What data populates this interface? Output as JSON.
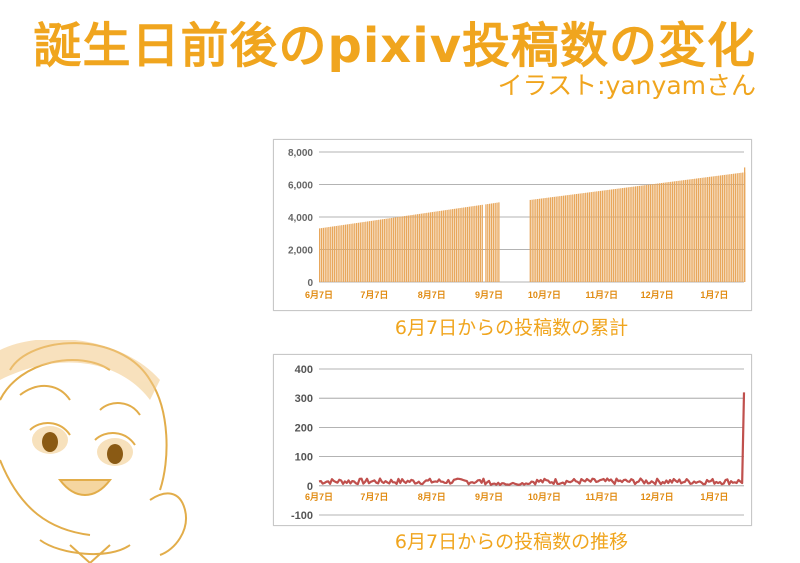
{
  "header": {
    "title": "誕生日前後のpixiv投稿数の変化",
    "subtitle": "イラスト:yanyamさん"
  },
  "colors": {
    "accent": "#f0a51e",
    "bar_fill": "#e8a75c",
    "line": "#c0504d"
  },
  "chart_data": [
    {
      "type": "bar",
      "title": "",
      "caption": "6月7日からの投稿数の累計",
      "x_tick_labels": [
        "6月7日",
        "7月7日",
        "8月7日",
        "9月7日",
        "10月7日",
        "11月7日",
        "12月7日",
        "1月7日"
      ],
      "ylim": [
        0,
        8000
      ],
      "y_ticks": [
        0,
        2000,
        4000,
        6000,
        8000
      ],
      "y_tick_labels": [
        "0",
        "2,000",
        "4,000",
        "6,000",
        "8,000"
      ],
      "grid": true,
      "segments": [
        {
          "day_start": 0,
          "day_end": 88,
          "start_value": 3300,
          "end_value": 4750
        },
        {
          "day_start": 90,
          "day_end": 97,
          "start_value": 4780,
          "end_value": 4900
        },
        {
          "day_start": 114,
          "day_end": 230,
          "start_value": 5050,
          "end_value": 6750
        }
      ],
      "final_day_value": 7050
    },
    {
      "type": "line",
      "title": "",
      "caption": "6月7日からの投稿数の推移",
      "x_tick_labels": [
        "6月7日",
        "7月7日",
        "8月7日",
        "9月7日",
        "10月7日",
        "11月7日",
        "12月7日",
        "1月7日"
      ],
      "ylim": [
        -100,
        400
      ],
      "y_ticks": [
        -100,
        0,
        100,
        200,
        300,
        400
      ],
      "y_tick_labels": [
        "-100",
        "0",
        "100",
        "200",
        "300",
        "400"
      ],
      "grid": true,
      "typical_daily_range": [
        5,
        25
      ],
      "spike": {
        "value": 320
      }
    }
  ]
}
